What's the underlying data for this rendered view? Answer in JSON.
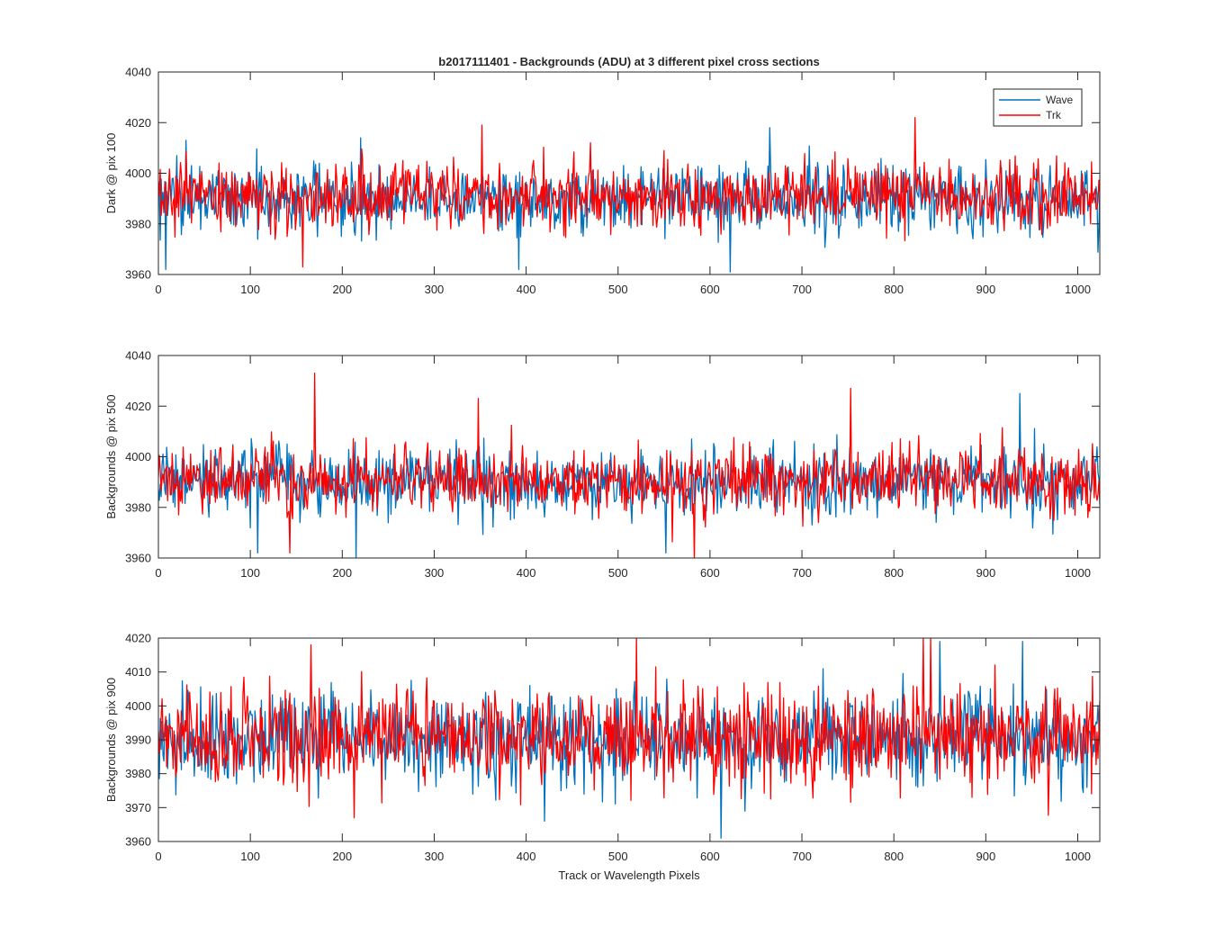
{
  "figure": {
    "title": "b2017111401 - Backgrounds (ADU) at 3 different pixel cross sections",
    "xlabel": "Track or Wavelength Pixels"
  },
  "legend": {
    "location": "top-right of first subplot",
    "entries": [
      {
        "name": "Wave",
        "color": "#0072BD"
      },
      {
        "name": "Trk",
        "color": "#FF0000"
      }
    ]
  },
  "chart_data": [
    {
      "type": "line",
      "ylabel": "Dark @ pix 100",
      "xlim": [
        0,
        1024
      ],
      "ylim": [
        3960,
        4040
      ],
      "xticks": [
        0,
        100,
        200,
        300,
        400,
        500,
        600,
        700,
        800,
        900,
        1000
      ],
      "yticks": [
        3960,
        3980,
        4000,
        4020,
        4040
      ],
      "grid": false,
      "series": [
        {
          "name": "Wave",
          "color": "#0072BD",
          "mean": 3990,
          "noise_sd": 6.5,
          "spikes": [
            [
              8,
              3962
            ],
            [
              392,
              3962
            ],
            [
              622,
              3961
            ],
            [
              665,
              4018
            ],
            [
              30,
              4013
            ],
            [
              220,
              4014
            ]
          ]
        },
        {
          "name": "Trk",
          "color": "#FF0000",
          "mean": 3991,
          "noise_sd": 6.5,
          "spikes": [
            [
              157,
              3963
            ],
            [
              352,
              4019
            ],
            [
              823,
              4022
            ],
            [
              1008,
              3994
            ]
          ]
        }
      ]
    },
    {
      "type": "line",
      "ylabel": "Backgrounds @ pix 500",
      "xlim": [
        0,
        1024
      ],
      "ylim": [
        3960,
        4040
      ],
      "xticks": [
        0,
        100,
        200,
        300,
        400,
        500,
        600,
        700,
        800,
        900,
        1000
      ],
      "yticks": [
        3960,
        3980,
        4000,
        4020,
        4040
      ],
      "grid": false,
      "series": [
        {
          "name": "Wave",
          "color": "#0072BD",
          "mean": 3990,
          "noise_sd": 6.5,
          "spikes": [
            [
              215,
              3959
            ],
            [
              937,
              4025
            ],
            [
              108,
              3962
            ],
            [
              552,
              3962
            ]
          ]
        },
        {
          "name": "Trk",
          "color": "#FF0000",
          "mean": 3991,
          "noise_sd": 6.5,
          "spikes": [
            [
              170,
              4033
            ],
            [
              348,
              4023
            ],
            [
              753,
              4027
            ],
            [
              583,
              3959
            ],
            [
              143,
              3962
            ]
          ]
        }
      ]
    },
    {
      "type": "line",
      "ylabel": "Backgrounds @ pix 900",
      "xlim": [
        0,
        1024
      ],
      "ylim": [
        3960,
        4020
      ],
      "xticks": [
        0,
        100,
        200,
        300,
        400,
        500,
        600,
        700,
        800,
        900,
        1000
      ],
      "yticks": [
        3960,
        3970,
        3980,
        3990,
        4000,
        4010,
        4020
      ],
      "grid": false,
      "series": [
        {
          "name": "Wave",
          "color": "#0072BD",
          "mean": 3990,
          "noise_sd": 7,
          "spikes": [
            [
              612,
              3961
            ],
            [
              850,
              4019
            ],
            [
              940,
              4019
            ],
            [
              420,
              3966
            ]
          ]
        },
        {
          "name": "Trk",
          "color": "#FF0000",
          "mean": 3991,
          "noise_sd": 7,
          "spikes": [
            [
              520,
              4020
            ],
            [
              832,
              4020
            ],
            [
              840,
              4020
            ],
            [
              166,
              4018
            ],
            [
              213,
              3967
            ]
          ]
        }
      ]
    }
  ]
}
